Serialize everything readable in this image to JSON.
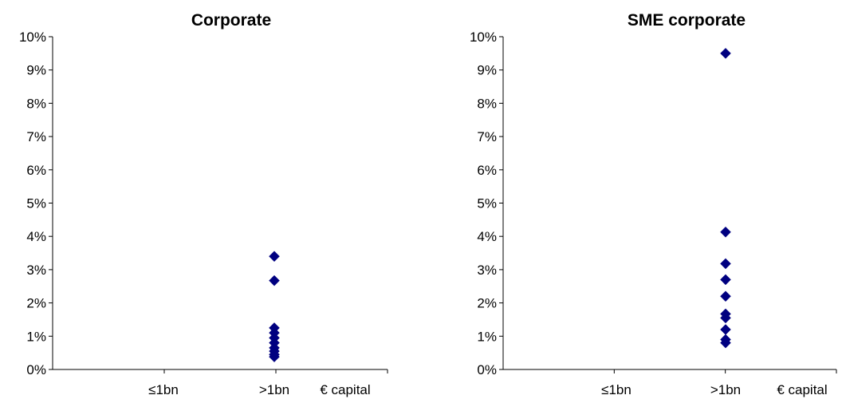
{
  "chart_data": [
    {
      "type": "scatter",
      "title": "Corporate",
      "categories": [
        "≤1bn",
        ">1bn"
      ],
      "xlabel": "€ capital",
      "ylabel": "",
      "ylim": [
        0,
        0.1
      ],
      "yticks": [
        "0%",
        "1%",
        "2%",
        "3%",
        "4%",
        "5%",
        "6%",
        "7%",
        "8%",
        "9%",
        "10%"
      ],
      "grid": false,
      "marker": "diamond",
      "marker_color": "#000080",
      "series": [
        {
          "category": "≤1bn",
          "values": []
        },
        {
          "category": ">1bn",
          "values": [
            0.034,
            0.0267,
            0.0125,
            0.011,
            0.0095,
            0.008,
            0.0065,
            0.0055,
            0.0045,
            0.0038
          ]
        }
      ]
    },
    {
      "type": "scatter",
      "title": "SME corporate",
      "categories": [
        "≤1bn",
        ">1bn"
      ],
      "xlabel": "€ capital",
      "ylabel": "",
      "ylim": [
        0,
        0.1
      ],
      "yticks": [
        "0%",
        "1%",
        "2%",
        "3%",
        "4%",
        "5%",
        "6%",
        "7%",
        "8%",
        "9%",
        "10%"
      ],
      "grid": false,
      "marker": "diamond",
      "marker_color": "#000080",
      "series": [
        {
          "category": "≤1bn",
          "values": []
        },
        {
          "category": ">1bn",
          "values": [
            0.095,
            0.0413,
            0.0318,
            0.027,
            0.022,
            0.0167,
            0.0155,
            0.012,
            0.009,
            0.008
          ]
        }
      ]
    }
  ]
}
